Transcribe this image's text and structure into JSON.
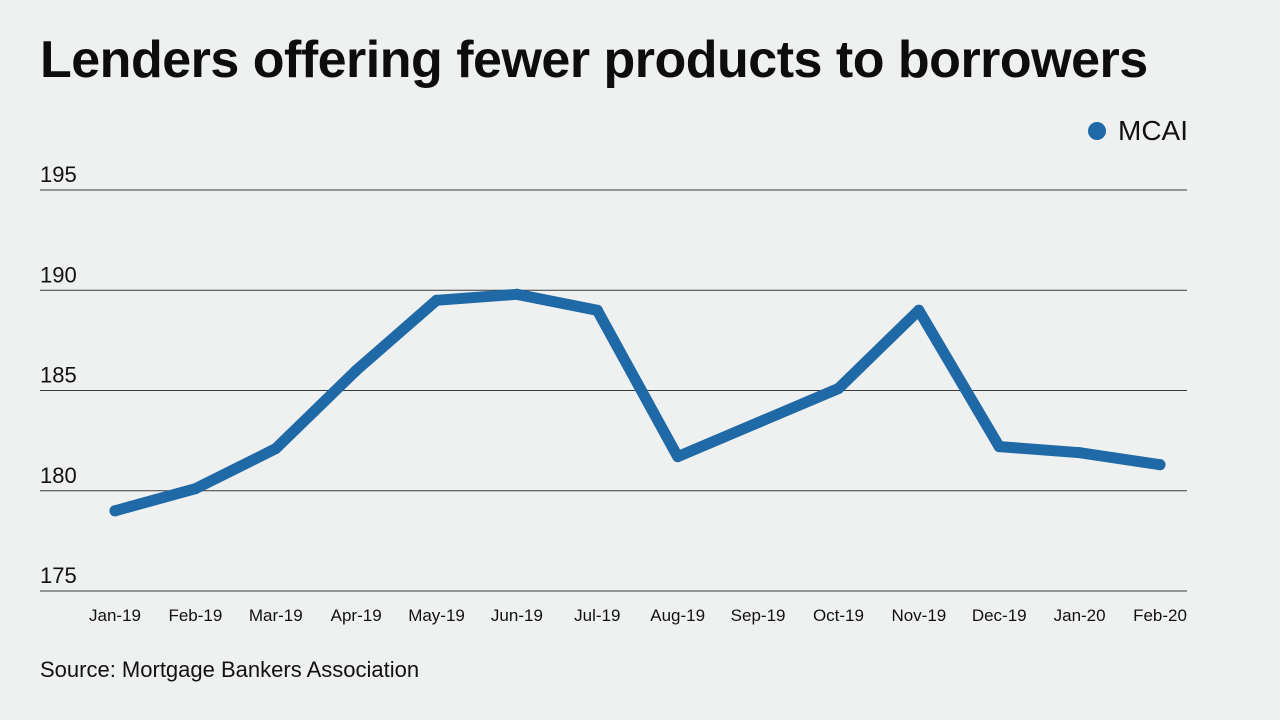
{
  "header": {
    "title": "Lenders offering fewer products to borrowers"
  },
  "footer": {
    "source": "Source: Mortgage Bankers Association"
  },
  "colors": {
    "series": "#1f69a6",
    "gridline": "#3a3a3a",
    "background": "#eff1f1"
  },
  "chart_data": {
    "type": "line",
    "title": "Lenders offering fewer products to borrowers",
    "xlabel": "",
    "ylabel": "",
    "ylim": [
      175,
      195
    ],
    "yticks": [
      195,
      190,
      185,
      180,
      175
    ],
    "grid": true,
    "legend_position": "top-right",
    "categories": [
      "Jan-19",
      "Feb-19",
      "Mar-19",
      "Apr-19",
      "May-19",
      "Jun-19",
      "Jul-19",
      "Aug-19",
      "Sep-19",
      "Oct-19",
      "Nov-19",
      "Dec-19",
      "Jan-20",
      "Feb-20"
    ],
    "series": [
      {
        "name": "MCAI",
        "values": [
          179.0,
          180.1,
          182.1,
          186.0,
          189.5,
          189.8,
          189.0,
          181.7,
          183.4,
          185.1,
          189.0,
          182.2,
          181.9,
          181.3
        ]
      }
    ]
  }
}
